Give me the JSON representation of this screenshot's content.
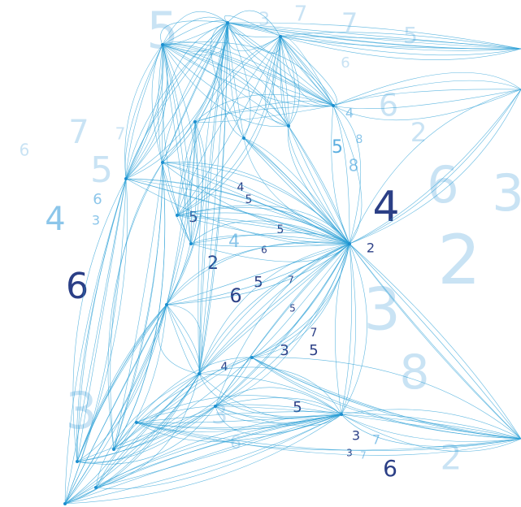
{
  "digits": [
    "5",
    "3",
    "7",
    "7",
    "5",
    "6",
    "4",
    "6",
    "2",
    "5",
    "8",
    "8",
    "6",
    "7",
    "7",
    "5",
    "6",
    "3",
    "4",
    "6",
    "4",
    "6",
    "3",
    "2",
    "3",
    "8",
    "2",
    "3",
    "6",
    "3",
    "5",
    "3",
    "7",
    "3",
    "7",
    "6",
    "2",
    "6",
    "5",
    "5",
    "4",
    "5",
    "4",
    "5",
    "2",
    "3",
    "5",
    "7",
    "4",
    "6",
    "7",
    "5"
  ]
}
